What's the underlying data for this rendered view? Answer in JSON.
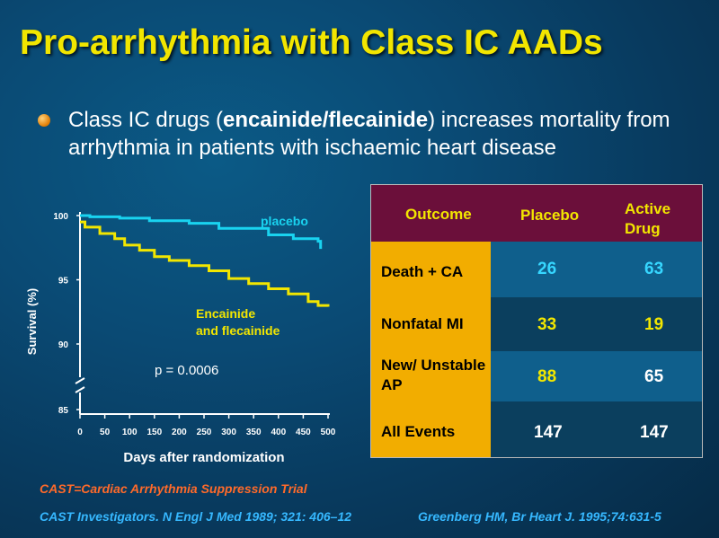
{
  "slide": {
    "title": "Pro-arrhythmia with Class IC AADs",
    "bullet": {
      "pre": "Class IC drugs (",
      "bold": "encainide/flecainide",
      "post": ") increases mortality from arrhythmia in patients with ischaemic heart disease"
    },
    "colors": {
      "title": "#f2e600",
      "placebo_line": "#19d3f0",
      "drug_line": "#f2e600",
      "table_header": "#6b0f3a",
      "table_outcome": "#f2ad00"
    }
  },
  "chart_data": {
    "type": "line",
    "xlabel": "Days after randomization",
    "ylabel": "Survival (%)",
    "x_ticks": [
      0,
      50,
      100,
      150,
      200,
      250,
      300,
      350,
      400,
      450,
      500
    ],
    "y_ticks": [
      85,
      90,
      95,
      100
    ],
    "xlim": [
      0,
      500
    ],
    "ylim": [
      85,
      100
    ],
    "y_axis_break": true,
    "grid": false,
    "annotation": "p = 0.0006",
    "series": [
      {
        "name": "placebo",
        "x": [
          0,
          20,
          80,
          140,
          220,
          280,
          380,
          430,
          480,
          485
        ],
        "y": [
          100,
          99.9,
          99.8,
          99.6,
          99.4,
          99.0,
          98.5,
          98.2,
          98.0,
          97.4
        ]
      },
      {
        "name": "Encainide and flecainide",
        "x": [
          0,
          10,
          40,
          70,
          90,
          120,
          150,
          180,
          220,
          260,
          300,
          340,
          380,
          420,
          460,
          480,
          500
        ],
        "y": [
          99.5,
          99.1,
          98.6,
          98.2,
          97.7,
          97.3,
          96.8,
          96.5,
          96.1,
          95.7,
          95.1,
          94.7,
          94.3,
          93.9,
          93.3,
          93.0,
          92.9
        ]
      }
    ]
  },
  "table": {
    "headers": [
      "Outcome",
      "Placebo",
      "Active Drug"
    ],
    "rows": [
      {
        "outcome": "Death + CA",
        "placebo": "26",
        "active": "63"
      },
      {
        "outcome": "Nonfatal MI",
        "placebo": "33",
        "active": "19"
      },
      {
        "outcome": "New/ Unstable AP",
        "placebo": "88",
        "active": "65"
      },
      {
        "outcome": "All Events",
        "placebo": "147",
        "active": "147"
      }
    ]
  },
  "footnotes": {
    "cast": "CAST=Cardiac Arrhythmia Suppression Trial",
    "ref1": "CAST Investigators. N Engl J Med 1989; 321: 406–12",
    "ref2": "Greenberg HM, Br Heart J. 1995;74:631-5"
  }
}
